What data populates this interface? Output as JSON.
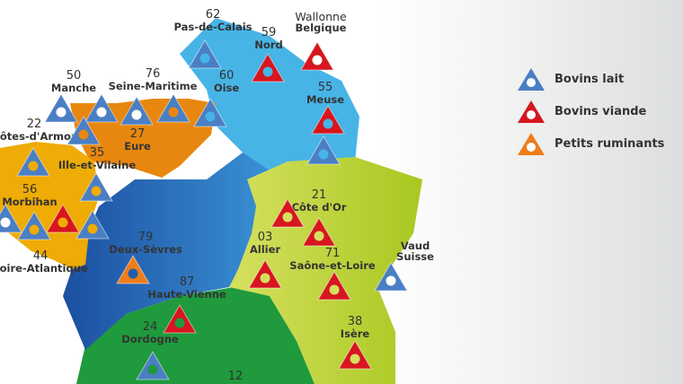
{
  "colors": {
    "bovins_lait": "#4a7fc4",
    "bovins_viande": "#d7161f",
    "petits_ruminants": "#ee7d1a"
  },
  "legend": [
    {
      "type": "bovins_lait",
      "label": "Bovins lait"
    },
    {
      "type": "bovins_viande",
      "label": "Bovins viande"
    },
    {
      "type": "petits_ruminants",
      "label": "Petits ruminants"
    }
  ],
  "labels": [
    {
      "num": "62",
      "name": "Pas-de-Calais"
    },
    {
      "num": "59",
      "name": "Nord"
    },
    {
      "num": "Wallonne",
      "name": "Belgique"
    },
    {
      "num": "50",
      "name": "Manche"
    },
    {
      "num": "76",
      "name": "Seine-Maritime"
    },
    {
      "num": "60",
      "name": "Oise"
    },
    {
      "num": "55",
      "name": "Meuse"
    },
    {
      "num": "22",
      "name": "Côtes-d'Armor"
    },
    {
      "num": "27",
      "name": "Eure"
    },
    {
      "num": "35",
      "name": "Ille-et-Vilaine"
    },
    {
      "num": "56",
      "name": "Morbihan"
    },
    {
      "num": "44",
      "name": "Loire-Atlantique"
    },
    {
      "num": "79",
      "name": "Deux-Sèvres"
    },
    {
      "num": "21",
      "name": "Côte d'Or"
    },
    {
      "num": "03",
      "name": "Allier"
    },
    {
      "num": "71",
      "name": "Saône-et-Loire"
    },
    {
      "num": "Vaud",
      "name": "Suisse"
    },
    {
      "num": "87",
      "name": "Haute-Vienne"
    },
    {
      "num": "24",
      "name": "Dordogne"
    },
    {
      "num": "38",
      "name": "Isère"
    },
    {
      "num": "12",
      "name": ""
    }
  ],
  "markers": [
    "bovins_lait",
    "bovins_viande",
    "bovins_viande",
    "bovins_lait",
    "bovins_lait",
    "bovins_lait",
    "bovins_lait",
    "bovins_lait",
    "bovins_viande",
    "bovins_lait",
    "bovins_lait",
    "bovins_lait",
    "bovins_lait",
    "bovins_lait",
    "bovins_lait",
    "bovins_viande",
    "bovins_lait",
    "petits_ruminants",
    "bovins_viande",
    "bovins_viande",
    "bovins_viande",
    "bovins_viande",
    "bovins_lait",
    "bovins_viande",
    "bovins_lait",
    "bovins_viande"
  ]
}
